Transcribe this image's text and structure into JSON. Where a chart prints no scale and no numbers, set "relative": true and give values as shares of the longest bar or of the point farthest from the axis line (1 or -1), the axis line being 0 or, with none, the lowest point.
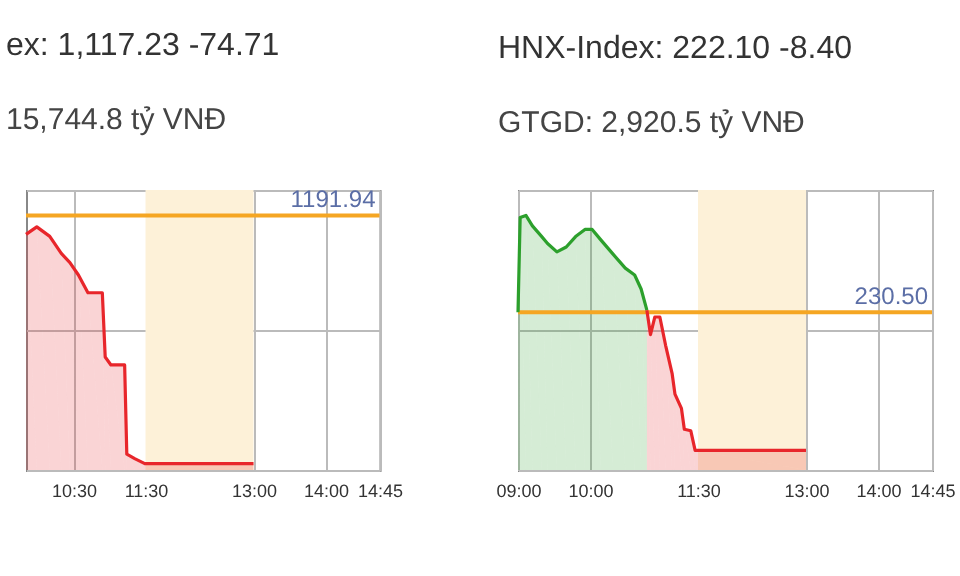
{
  "chart_data": [
    {
      "type": "area",
      "title": "ex: 1,117.23 -74.71",
      "subtitle": "15,744.8 tỷ VNĐ",
      "relative": true,
      "grid": true,
      "tick_labels": "x",
      "xlim": [
        9.84,
        14.75
      ],
      "xticks": [
        {
          "value": 10.5,
          "label": "10:30"
        },
        {
          "value": 11.5,
          "label": "11:30"
        },
        {
          "value": 13,
          "label": "13:00"
        },
        {
          "value": 14,
          "label": "14:00"
        },
        {
          "value": 14.75,
          "label": "14:45"
        }
      ],
      "series": [
        {
          "color": "#e8262b",
          "x": [
            9.84,
            9.99,
            10.17,
            10.33,
            10.45,
            10.57,
            10.7,
            10.9,
            10.94,
            11.02,
            11.21,
            11.24,
            11.35,
            11.49,
            13
          ],
          "values": [
            0.969,
            1,
            0.961,
            0.891,
            0.853,
            0.801,
            0.729,
            0.729,
            0.465,
            0.432,
            0.432,
            0.065,
            0.047,
            0.026,
            0.026
          ]
        }
      ],
      "ref_lines": [
        {
          "axis": "y",
          "value": 1.047,
          "color": "#f5a623"
        }
      ],
      "annotations": [
        "1191.94"
      ],
      "bands": [
        {
          "axis": "x",
          "from": 11.5,
          "to": 13,
          "color": "#fdf1d8"
        }
      ]
    },
    {
      "type": "area",
      "title": "HNX-Index: 222.10 -8.40",
      "subtitle": "GTGD: 2,920.5 tỷ VNĐ",
      "relative": true,
      "grid": true,
      "tick_labels": "x",
      "xlim": [
        9,
        14.75
      ],
      "xticks": [
        {
          "value": 9,
          "label": "09:00"
        },
        {
          "value": 10,
          "label": "10:00"
        },
        {
          "value": 11.5,
          "label": "11:30"
        },
        {
          "value": 13,
          "label": "13:00"
        },
        {
          "value": 14,
          "label": "14:00"
        },
        {
          "value": 14.75,
          "label": "14:45"
        }
      ],
      "series": [
        {
          "color": "#2ca02c",
          "x": [
            9,
            9.03,
            9.11,
            9.2,
            9.33,
            9.41,
            9.54,
            9.67,
            9.8,
            9.93,
            10.03,
            10.15,
            10.32,
            10.49,
            10.62,
            10.71,
            10.79
          ],
          "values": [
            0.62,
            0.992,
            1,
            0.959,
            0.917,
            0.89,
            0.857,
            0.876,
            0.917,
            0.945,
            0.945,
            0.904,
            0.848,
            0.793,
            0.766,
            0.711,
            0.628
          ]
        },
        {
          "color": "#e8262b",
          "x": [
            10.79,
            10.84,
            10.9,
            10.97,
            11.05,
            11.14,
            11.18,
            11.27,
            11.31,
            11.4,
            11.46,
            13
          ],
          "values": [
            0.628,
            0.532,
            0.601,
            0.601,
            0.49,
            0.38,
            0.298,
            0.242,
            0.16,
            0.154,
            0.077,
            0.077
          ]
        }
      ],
      "ref_lines": [
        {
          "axis": "y",
          "value": 0.62,
          "color": "#f5a623"
        }
      ],
      "annotations": [
        "230.50"
      ],
      "bands": [
        {
          "axis": "x",
          "from": 11.5,
          "to": 13,
          "color": "#fdf1d8"
        }
      ]
    }
  ]
}
